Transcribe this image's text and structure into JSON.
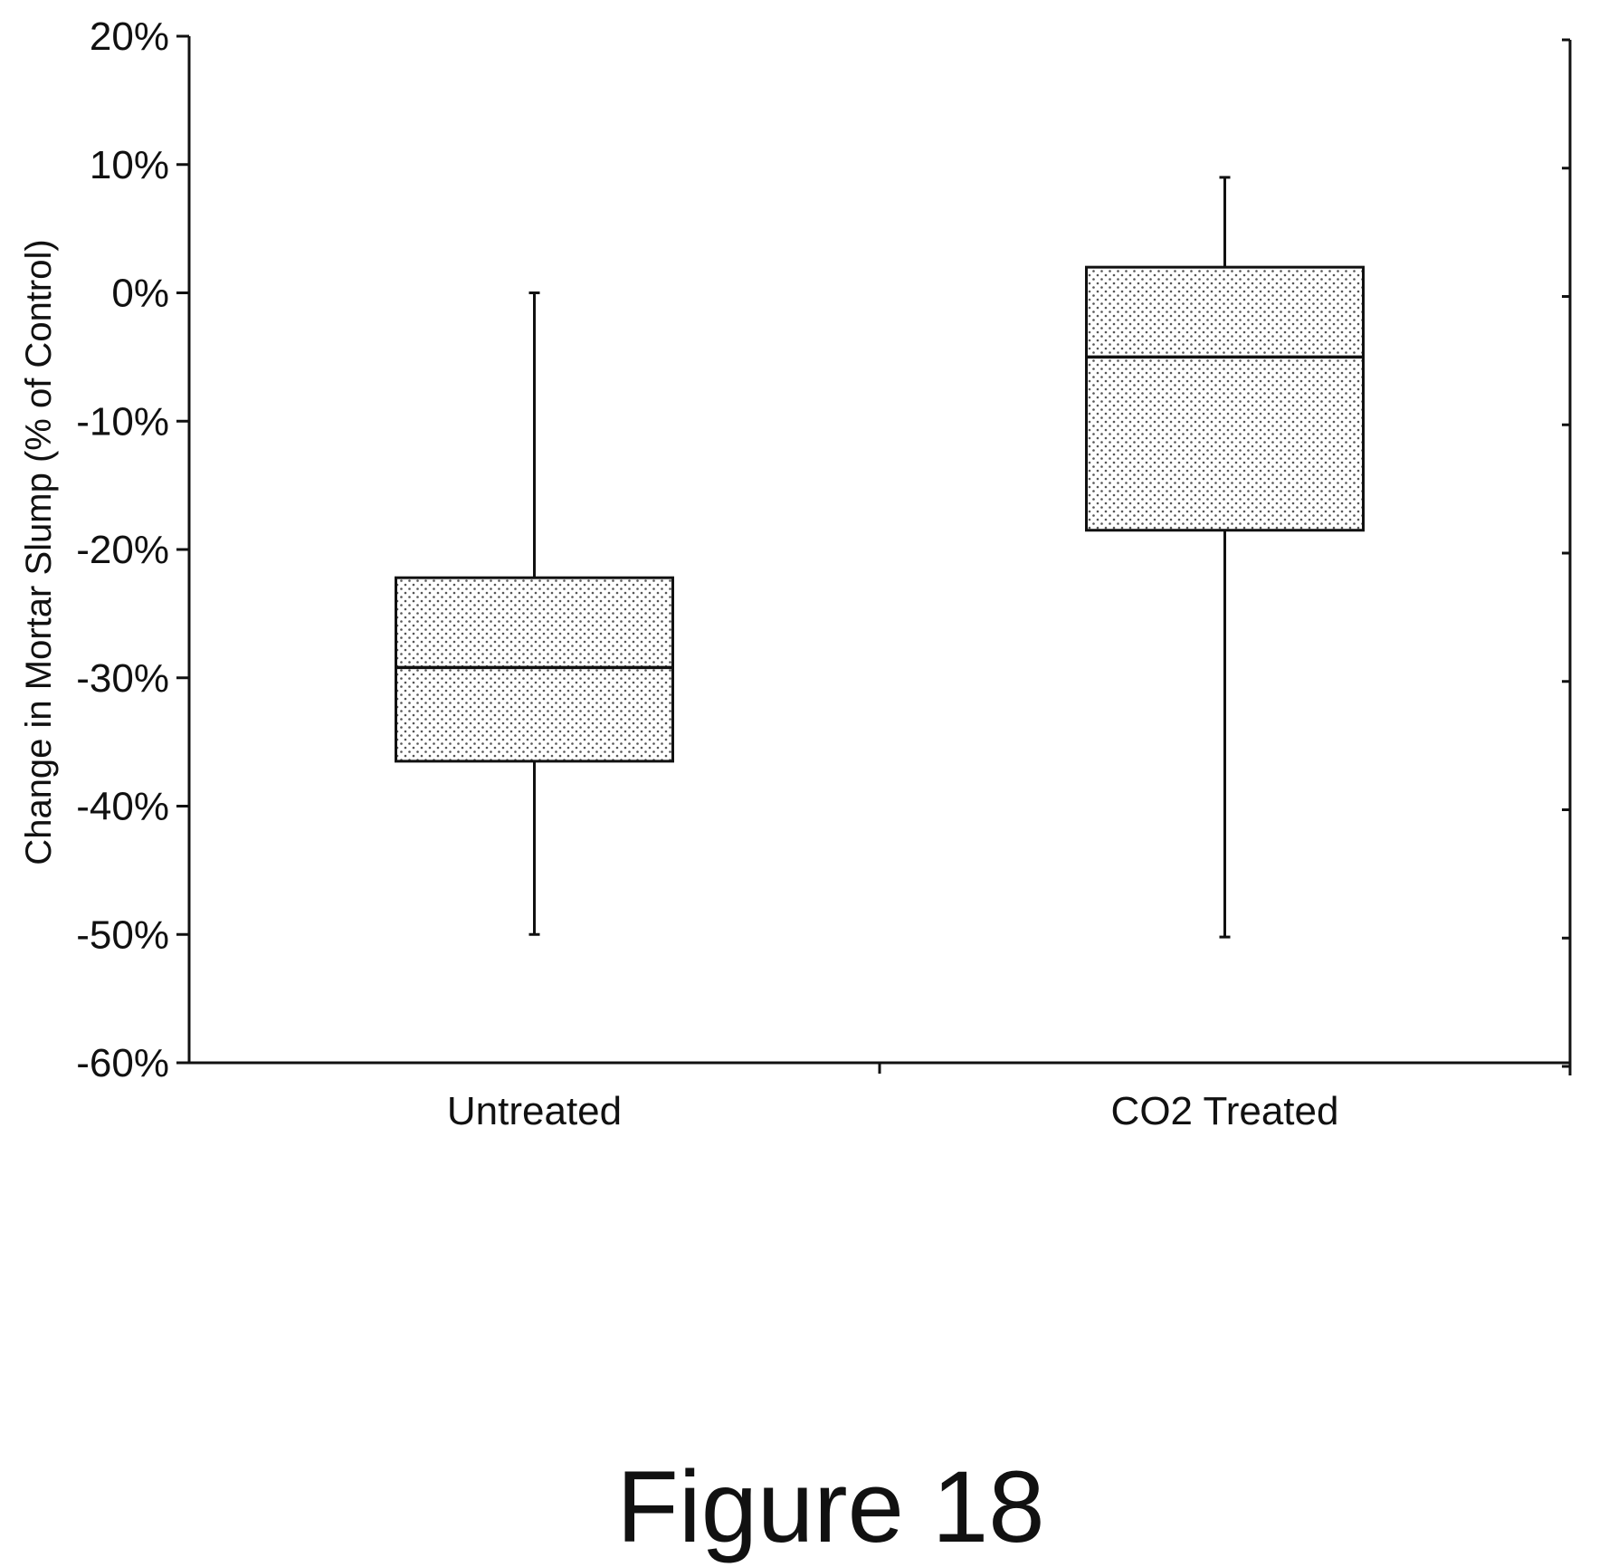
{
  "chart_data": {
    "type": "box",
    "ylabel": "Change in Mortar Slump (% of Control)",
    "xlabel": "",
    "ylim": [
      -60,
      20
    ],
    "y_ticks": [
      20,
      10,
      0,
      -10,
      -20,
      -30,
      -40,
      -50,
      -60
    ],
    "y_tick_labels": [
      "20%",
      "10%",
      "0%",
      "-10%",
      "-20%",
      "-30%",
      "-40%",
      "-50%",
      "-60%"
    ],
    "categories": [
      "Untreated",
      "CO2 Treated"
    ],
    "boxes": [
      {
        "category": "Untreated",
        "min": -50,
        "q1": -36.5,
        "median": -29.2,
        "q3": -22.2,
        "max": 0
      },
      {
        "category": "CO2 Treated",
        "min": -50.2,
        "q1": -18.5,
        "median": -5,
        "q3": 2,
        "max": 9
      }
    ],
    "grid": false,
    "legend": "none",
    "fill_pattern": "dotted",
    "colors": {
      "line": "#111111",
      "fill_dot": "#555555",
      "background": "#ffffff"
    }
  },
  "caption": "Figure 18"
}
